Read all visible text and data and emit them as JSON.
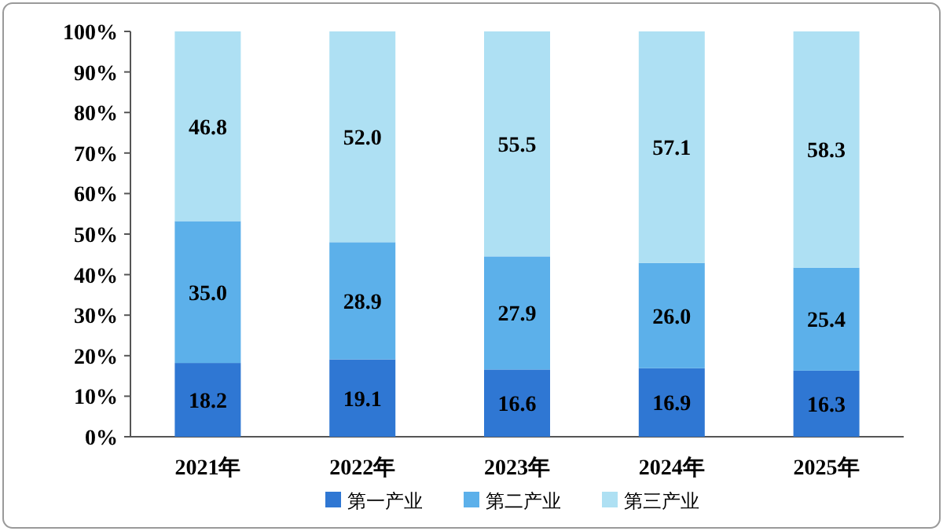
{
  "chart_data": {
    "type": "bar",
    "stacked": true,
    "legend": "bottom",
    "categories": [
      "2021年",
      "2022年",
      "2023年",
      "2024年",
      "2025年"
    ],
    "ylim": [
      0,
      100
    ],
    "yticks": [
      {
        "value": 0,
        "label": "0%"
      },
      {
        "value": 10,
        "label": "10%"
      },
      {
        "value": 20,
        "label": "20%"
      },
      {
        "value": 30,
        "label": "30%"
      },
      {
        "value": 40,
        "label": "40%"
      },
      {
        "value": 50,
        "label": "50%"
      },
      {
        "value": 60,
        "label": "60%"
      },
      {
        "value": 70,
        "label": "70%"
      },
      {
        "value": 80,
        "label": "80%"
      },
      {
        "value": 90,
        "label": "90%"
      },
      {
        "value": 100,
        "label": "100%"
      }
    ],
    "series": [
      {
        "name": "第一产业",
        "color": "#2f77d3",
        "values": [
          18.2,
          19.1,
          16.6,
          16.9,
          16.3
        ],
        "value_labels": [
          "18.2",
          "19.1",
          "16.6",
          "16.9",
          "16.3"
        ]
      },
      {
        "name": "第二产业",
        "color": "#5cb0ea",
        "values": [
          35.0,
          28.9,
          27.9,
          26.0,
          25.4
        ],
        "value_labels": [
          "35.0",
          "28.9",
          "27.9",
          "26.0",
          "25.4"
        ]
      },
      {
        "name": "第三产业",
        "color": "#aee0f3",
        "values": [
          46.8,
          52.0,
          55.5,
          57.1,
          58.3
        ],
        "value_labels": [
          "46.8",
          "52.0",
          "55.5",
          "57.1",
          "58.3"
        ]
      }
    ]
  }
}
